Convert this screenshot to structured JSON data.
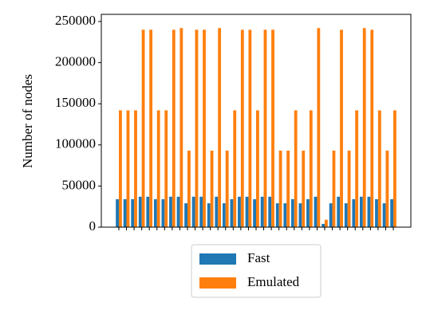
{
  "chart_data": {
    "type": "bar",
    "y_label": "Number of nodes",
    "categories": [
      null,
      null,
      null,
      null,
      null,
      null,
      null,
      null,
      null,
      null,
      null,
      null,
      null,
      null,
      null,
      null,
      null,
      null,
      null,
      null,
      null,
      null,
      null,
      null,
      null,
      null,
      null,
      null,
      null,
      null,
      null,
      null,
      null,
      null,
      null,
      null,
      null
    ],
    "series": [
      {
        "name": "Fast",
        "color": "#1f77b4",
        "values": [
          34000,
          34000,
          34000,
          37000,
          37000,
          34000,
          34000,
          37000,
          37000,
          29000,
          37000,
          37000,
          29000,
          37000,
          29000,
          34000,
          37000,
          37000,
          34000,
          37000,
          37000,
          29000,
          29000,
          34000,
          29000,
          34000,
          37000,
          4000,
          29000,
          37000,
          29000,
          34000,
          37000,
          37000,
          34000,
          29000,
          34000
        ]
      },
      {
        "name": "Emulated",
        "color": "#ff7f0e",
        "values": [
          142000,
          142000,
          142000,
          240000,
          240000,
          142000,
          142000,
          240000,
          242000,
          93000,
          240000,
          240000,
          93000,
          242000,
          93000,
          142000,
          240000,
          240000,
          142000,
          240000,
          240000,
          93000,
          93000,
          142000,
          93000,
          142000,
          242000,
          9000,
          93000,
          240000,
          93000,
          142000,
          242000,
          240000,
          142000,
          93000,
          142000
        ]
      }
    ],
    "ylim": [
      0,
      258700
    ],
    "yticks": [
      0,
      50000,
      100000,
      150000,
      200000,
      250000
    ],
    "legend": "below"
  }
}
